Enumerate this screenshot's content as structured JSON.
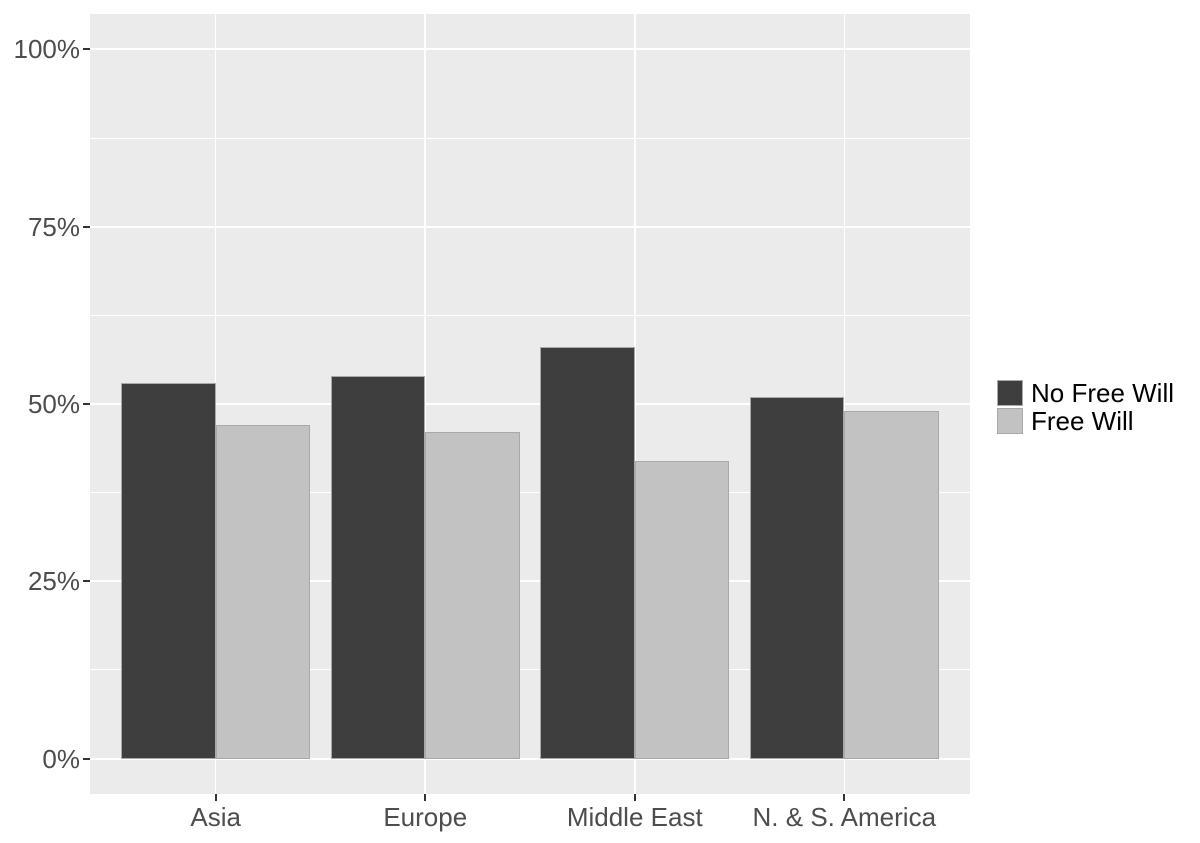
{
  "chart_data": {
    "type": "bar",
    "mode": "grouped-dodged",
    "title": "",
    "xlabel": "",
    "ylabel": "",
    "categories": [
      "Asia",
      "Europe",
      "Middle East",
      "N. & S. America"
    ],
    "series": [
      {
        "name": "No Free Will",
        "color": "#3e3e3e",
        "values": [
          53,
          54,
          58,
          51
        ]
      },
      {
        "name": "Free Will",
        "color": "#c2c2c2",
        "values": [
          47,
          46,
          42,
          49
        ]
      }
    ],
    "y_axis": {
      "tick_values": [
        0,
        25,
        50,
        75,
        100
      ],
      "tick_labels": [
        "0%",
        "25%",
        "50%",
        "75%",
        "100%"
      ],
      "ylim": [
        0,
        100
      ]
    },
    "grid": "on",
    "legend_position": "right",
    "style": {
      "figure_background": "#ffffff",
      "panel_background": "#ebebeb",
      "grid_color": "#ffffff",
      "axis_text_color": "#4d4d4d",
      "tick_color": "#333333",
      "legend_text_color": "#000000",
      "bar_border_color": "#a9a9a9"
    }
  }
}
